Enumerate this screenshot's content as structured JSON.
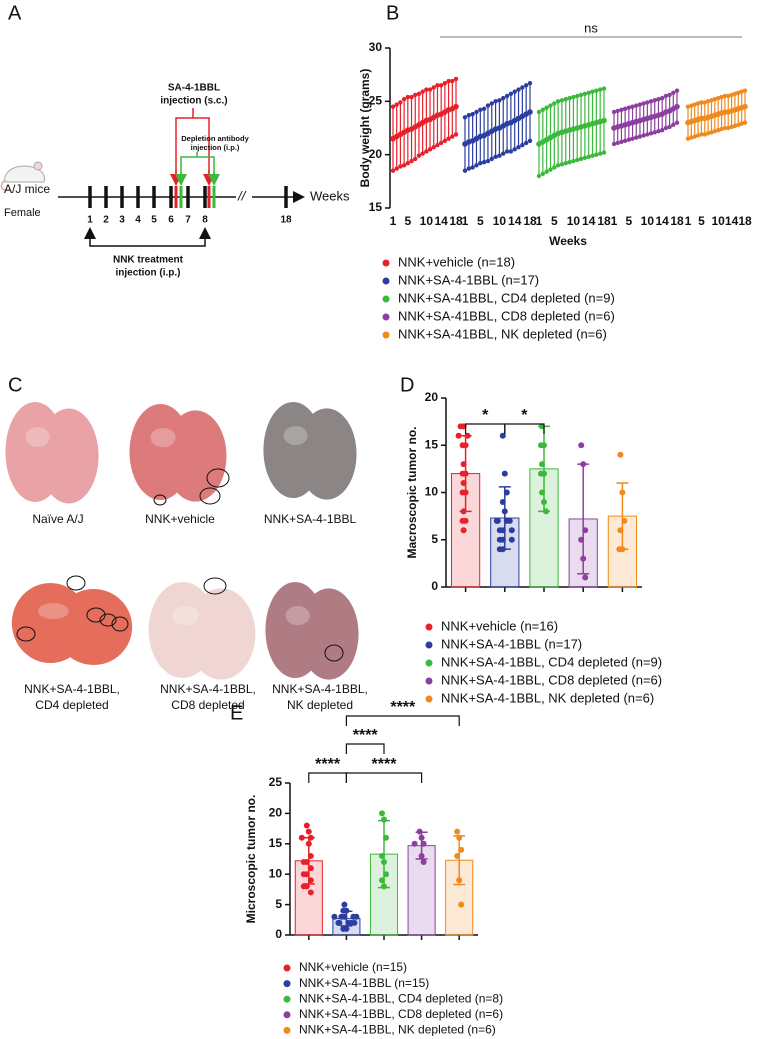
{
  "panel_labels": [
    "A",
    "B",
    "C",
    "D",
    "E"
  ],
  "timeline": {
    "subject": [
      "A/J mice",
      "Female"
    ],
    "axis_label": "Weeks",
    "weeks": [
      1,
      2,
      3,
      4,
      5,
      6,
      7,
      8,
      18
    ],
    "sa_injection": [
      "SA-4-1BBL",
      "injection (s.c.)"
    ],
    "depletion_injection": [
      "Depletion antibody",
      "injection (i.p.)"
    ],
    "nnk_injection": [
      "NNK treatment",
      "injection (i.p.)"
    ]
  },
  "photos": {
    "captions": [
      [
        "Naïve A/J"
      ],
      [
        "NNK+vehicle"
      ],
      [
        "NNK+SA-4-1BBL"
      ],
      [
        "NNK+SA-4-1BBL,",
        "CD4 depleted"
      ],
      [
        "NNK+SA-4-1BBL,",
        "CD8 depleted"
      ],
      [
        "NNK+SA-4-1BBL,",
        "NK depleted"
      ]
    ]
  },
  "chart_data": [
    {
      "type": "errorbar",
      "ylabel": "Body weight (grams)",
      "xlabel": "Weeks",
      "annotation": "ns",
      "x": [
        1,
        2,
        3,
        4,
        5,
        6,
        7,
        8,
        9,
        10,
        11,
        12,
        13,
        14,
        15,
        16,
        17,
        18
      ],
      "xlim": [
        1,
        18
      ],
      "xticks": [
        1,
        5,
        10,
        14,
        18
      ],
      "ylim": [
        15,
        30
      ],
      "yticks": [
        15,
        20,
        25,
        30
      ],
      "series": [
        {
          "name": "NNK+vehicle (n=18)",
          "color": "#e8202a",
          "values": [
            21.5,
            21.7,
            21.9,
            22.1,
            22.3,
            22.4,
            22.6,
            22.8,
            23.0,
            23.2,
            23.3,
            23.5,
            23.7,
            23.8,
            24.0,
            24.2,
            24.3,
            24.5
          ],
          "errors": [
            3.0,
            3.0,
            3.0,
            3.1,
            3.1,
            3.0,
            3.0,
            2.9,
            2.9,
            2.9,
            2.8,
            2.8,
            2.8,
            2.7,
            2.7,
            2.7,
            2.6,
            2.6
          ]
        },
        {
          "name": "NNK+SA-4-1BBL (n=17)",
          "color": "#2b3ea0",
          "values": [
            21.0,
            21.2,
            21.3,
            21.5,
            21.7,
            21.8,
            22.0,
            22.2,
            22.4,
            22.5,
            22.7,
            22.9,
            23.0,
            23.2,
            23.4,
            23.6,
            23.8,
            24.0
          ],
          "errors": [
            2.5,
            2.5,
            2.5,
            2.5,
            2.5,
            2.5,
            2.6,
            2.6,
            2.6,
            2.6,
            2.6,
            2.6,
            2.7,
            2.7,
            2.7,
            2.7,
            2.7,
            2.7
          ]
        },
        {
          "name": "NNK+SA-41BBL, CD4 depleted (n=9)",
          "color": "#3cb93c",
          "values": [
            21.0,
            21.2,
            21.4,
            21.6,
            21.8,
            22.0,
            22.1,
            22.2,
            22.3,
            22.4,
            22.5,
            22.6,
            22.7,
            22.8,
            22.9,
            23.0,
            23.1,
            23.2
          ],
          "errors": [
            3.0,
            3.0,
            3.0,
            3.0,
            3.0,
            3.0,
            3.0,
            3.0,
            3.0,
            3.0,
            3.0,
            3.0,
            3.0,
            3.0,
            3.0,
            3.0,
            3.0,
            3.0
          ]
        },
        {
          "name": "NNK+SA-41BBL, CD8 depleted (n=6)",
          "color": "#8c3fa0",
          "values": [
            22.5,
            22.6,
            22.7,
            22.8,
            22.9,
            23.0,
            23.1,
            23.2,
            23.3,
            23.4,
            23.5,
            23.6,
            23.7,
            23.8,
            24.0,
            24.1,
            24.3,
            24.5
          ],
          "errors": [
            1.5,
            1.5,
            1.5,
            1.5,
            1.5,
            1.5,
            1.5,
            1.5,
            1.5,
            1.5,
            1.5,
            1.5,
            1.5,
            1.5,
            1.5,
            1.5,
            1.5,
            1.5
          ]
        },
        {
          "name": "NNK+SA-41BBL, NK depleted (n=6)",
          "color": "#f08a1d",
          "values": [
            23.0,
            23.1,
            23.2,
            23.3,
            23.4,
            23.4,
            23.5,
            23.6,
            23.7,
            23.8,
            23.9,
            24.0,
            24.0,
            24.1,
            24.2,
            24.3,
            24.4,
            24.5
          ],
          "errors": [
            1.5,
            1.5,
            1.5,
            1.5,
            1.5,
            1.5,
            1.5,
            1.5,
            1.5,
            1.5,
            1.5,
            1.5,
            1.5,
            1.5,
            1.5,
            1.5,
            1.5,
            1.5
          ]
        }
      ]
    },
    {
      "type": "bar",
      "ylabel": "Macroscopic tumor no.",
      "ylim": [
        0,
        20
      ],
      "yticks": [
        0,
        5,
        10,
        15,
        20
      ],
      "comparisons": [
        {
          "groups": [
            0,
            1
          ],
          "label": "*"
        },
        {
          "groups": [
            1,
            2
          ],
          "label": "*"
        }
      ],
      "series": [
        {
          "name": "NNK+vehicle (n=16)",
          "color": "#e8202a",
          "value": 12,
          "error": 4,
          "points": [
            17,
            17,
            16,
            16,
            15,
            15,
            13,
            12,
            12,
            11,
            10,
            10,
            8,
            7,
            7,
            6
          ]
        },
        {
          "name": "NNK+SA-4-1BBL (n=17)",
          "color": "#2b3ea0",
          "value": 7.3,
          "error": 3.3,
          "points": [
            16,
            12,
            10,
            9,
            8,
            7,
            7,
            7,
            7,
            6,
            6,
            6,
            5,
            5,
            5,
            4,
            4
          ]
        },
        {
          "name": "NNK+SA-4-1BBL, CD4 depleted (n=9)",
          "color": "#3cb93c",
          "value": 12.5,
          "error": 4.5,
          "points": [
            17,
            15,
            15,
            13,
            12,
            12,
            10,
            9,
            8
          ]
        },
        {
          "name": "NNK+SA-4-1BBL, CD8 depleted (n=6)",
          "color": "#8c3fa0",
          "value": 7.2,
          "error": 5.8,
          "points": [
            15,
            13,
            6,
            5,
            3,
            1
          ]
        },
        {
          "name": "NNK+SA-4-1BBL, NK depleted (n=6)",
          "color": "#f08a1d",
          "value": 7.5,
          "error": 3.5,
          "points": [
            14,
            10,
            7,
            6,
            4,
            4
          ]
        }
      ]
    },
    {
      "type": "bar",
      "ylabel": "Microscopic tumor no.",
      "ylim": [
        0,
        25
      ],
      "yticks": [
        0,
        5,
        10,
        15,
        20,
        25
      ],
      "comparisons": [
        {
          "groups": [
            0,
            1
          ],
          "label": "****"
        },
        {
          "groups": [
            1,
            3
          ],
          "label": "****"
        },
        {
          "groups": [
            1,
            2
          ],
          "label": "****"
        },
        {
          "groups": [
            1,
            4
          ],
          "label": "****"
        }
      ],
      "series": [
        {
          "name": "NNK+vehicle (n=15)",
          "color": "#e8202a",
          "value": 12.2,
          "error": 3.8,
          "points": [
            18,
            17,
            16,
            16,
            15,
            13,
            12,
            12,
            11,
            10,
            10,
            9,
            8,
            8,
            7
          ]
        },
        {
          "name": "NNK+SA-4-1BBL (n=15)",
          "color": "#2b3ea0",
          "value": 2.7,
          "error": 1.2,
          "points": [
            5,
            4,
            4,
            3,
            3,
            3,
            3,
            3,
            2,
            2,
            2,
            2,
            2,
            1,
            1
          ]
        },
        {
          "name": "NNK+SA-4-1BBL, CD4 depleted (n=8)",
          "color": "#3cb93c",
          "value": 13.3,
          "error": 5.5,
          "points": [
            20,
            19,
            16,
            13,
            12,
            10,
            9,
            8
          ]
        },
        {
          "name": "NNK+SA-4-1BBL, CD8 depleted (n=6)",
          "color": "#8c3fa0",
          "value": 14.7,
          "error": 2.2,
          "points": [
            17,
            16,
            15,
            15,
            13,
            12
          ]
        },
        {
          "name": "NNK+SA-4-1BBL, NK depleted (n=6)",
          "color": "#f08a1d",
          "value": 12.3,
          "error": 4.0,
          "points": [
            17,
            16,
            14,
            13,
            9,
            5
          ]
        }
      ]
    }
  ]
}
